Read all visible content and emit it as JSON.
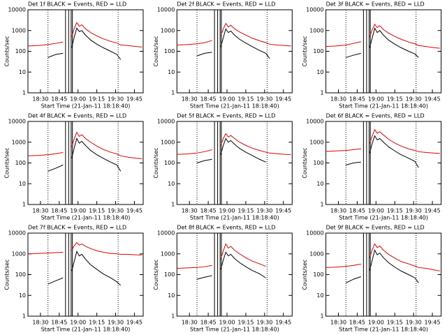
{
  "chart_data": [
    {
      "type": "line",
      "title": "Det 1f BLACK = Events, RED = LLD",
      "ylabel": "Counts/sec",
      "xlabel": "Start Time (21-Jan-11 18:18:40)",
      "log_y": true,
      "x": [
        20,
        28,
        36,
        42,
        48,
        52,
        55,
        57,
        59,
        61,
        63,
        66,
        70,
        75,
        80,
        86,
        91,
        94,
        100,
        106,
        111
      ],
      "series": [
        {
          "color": "#000000",
          "values": [
            null,
            null,
            50,
            70,
            80,
            null,
            150,
            500,
            1300,
            900,
            1000,
            600,
            350,
            220,
            150,
            100,
            70,
            40,
            null,
            null,
            null
          ]
        },
        {
          "color": "#e00000",
          "values": [
            180,
            190,
            210,
            240,
            280,
            null,
            500,
            1300,
            2400,
            1600,
            1900,
            1200,
            800,
            550,
            400,
            300,
            250,
            200,
            190,
            170,
            160
          ]
        }
      ],
      "xlim": [
        20,
        112
      ],
      "xticks": [
        {
          "value": 30,
          "label": "18:30"
        },
        {
          "value": 45,
          "label": "18:45"
        },
        {
          "value": 60,
          "label": "19:00"
        },
        {
          "value": 75,
          "label": "19:15"
        },
        {
          "value": 90,
          "label": "19:30"
        },
        {
          "value": 105,
          "label": "19:45"
        }
      ],
      "ylim": [
        1,
        10000
      ],
      "yticks": [
        1,
        10,
        100,
        1000,
        10000
      ],
      "dotted_lines": [
        36,
        92
      ],
      "solid_lines": [
        50,
        52.5,
        54.5,
        55.5
      ]
    },
    {
      "type": "line",
      "title": "Det 2f BLACK = Events, RED = LLD",
      "ylabel": "Counts/sec",
      "xlabel": "Start Time (21-Jan-11 18:18:40)",
      "log_y": true,
      "x": [
        20,
        28,
        36,
        42,
        48,
        52,
        55,
        57,
        59,
        61,
        63,
        66,
        70,
        75,
        80,
        86,
        91,
        94,
        100,
        106,
        111
      ],
      "series": [
        {
          "color": "#000000",
          "values": [
            null,
            null,
            60,
            80,
            90,
            null,
            160,
            450,
            1200,
            800,
            950,
            600,
            380,
            250,
            170,
            110,
            80,
            45,
            null,
            null,
            null
          ]
        },
        {
          "color": "#e00000",
          "values": [
            200,
            210,
            230,
            260,
            330,
            null,
            550,
            1200,
            2200,
            1500,
            1800,
            1200,
            850,
            600,
            430,
            320,
            260,
            220,
            200,
            190,
            180
          ]
        }
      ],
      "xlim": [
        20,
        112
      ],
      "xticks": [
        {
          "value": 30,
          "label": "18:30"
        },
        {
          "value": 45,
          "label": "18:45"
        },
        {
          "value": 60,
          "label": "19:00"
        },
        {
          "value": 75,
          "label": "19:15"
        },
        {
          "value": 90,
          "label": "19:30"
        },
        {
          "value": 105,
          "label": "19:45"
        }
      ],
      "ylim": [
        1,
        10000
      ],
      "yticks": [
        1,
        10,
        100,
        1000,
        10000
      ],
      "dotted_lines": [
        36,
        92
      ],
      "solid_lines": [
        50,
        52.5,
        54.5,
        55.5
      ]
    },
    {
      "type": "line",
      "title": "Det 3f BLACK = Events, RED = LLD",
      "ylabel": "Counts/sec",
      "xlabel": "Start Time (21-Jan-11 18:18:40)",
      "log_y": true,
      "x": [
        20,
        28,
        36,
        42,
        48,
        52,
        55,
        57,
        59,
        61,
        63,
        66,
        70,
        75,
        80,
        86,
        91,
        94,
        100,
        106,
        111
      ],
      "series": [
        {
          "color": "#000000",
          "values": [
            null,
            null,
            50,
            65,
            80,
            null,
            150,
            450,
            1300,
            800,
            1000,
            600,
            350,
            220,
            150,
            100,
            75,
            50,
            null,
            null,
            null
          ]
        },
        {
          "color": "#e00000",
          "values": [
            170,
            180,
            200,
            240,
            290,
            null,
            500,
            1100,
            2000,
            1400,
            1700,
            1100,
            750,
            520,
            380,
            280,
            230,
            190,
            170,
            150,
            140
          ]
        }
      ],
      "xlim": [
        20,
        112
      ],
      "xticks": [
        {
          "value": 30,
          "label": "18:30"
        },
        {
          "value": 45,
          "label": "18:45"
        },
        {
          "value": 60,
          "label": "19:00"
        },
        {
          "value": 75,
          "label": "19:15"
        },
        {
          "value": 90,
          "label": "19:30"
        },
        {
          "value": 105,
          "label": "19:45"
        }
      ],
      "ylim": [
        1,
        10000
      ],
      "yticks": [
        1,
        10,
        100,
        1000,
        10000
      ],
      "dotted_lines": [
        36,
        92
      ],
      "solid_lines": [
        50,
        52.5,
        54.5,
        55.5
      ]
    },
    {
      "type": "line",
      "title": "Det 4f BLACK = Events, RED = LLD",
      "ylabel": "Counts/sec",
      "xlabel": "Start Time (21-Jan-11 18:18:40)",
      "log_y": true,
      "x": [
        20,
        28,
        36,
        42,
        48,
        52,
        55,
        57,
        59,
        61,
        63,
        66,
        70,
        75,
        80,
        86,
        91,
        94,
        100,
        106,
        111
      ],
      "series": [
        {
          "color": "#000000",
          "values": [
            null,
            null,
            40,
            55,
            80,
            null,
            170,
            550,
            1500,
            900,
            1100,
            700,
            400,
            250,
            170,
            110,
            80,
            40,
            null,
            null,
            null
          ]
        },
        {
          "color": "#e00000",
          "values": [
            220,
            230,
            250,
            280,
            320,
            null,
            600,
            1500,
            3000,
            1900,
            2300,
            1500,
            1000,
            650,
            450,
            330,
            270,
            220,
            190,
            170,
            160
          ]
        }
      ],
      "xlim": [
        20,
        112
      ],
      "xticks": [
        {
          "value": 30,
          "label": "18:30"
        },
        {
          "value": 45,
          "label": "18:45"
        },
        {
          "value": 60,
          "label": "19:00"
        },
        {
          "value": 75,
          "label": "19:15"
        },
        {
          "value": 90,
          "label": "19:30"
        },
        {
          "value": 105,
          "label": "19:45"
        }
      ],
      "ylim": [
        1,
        10000
      ],
      "yticks": [
        1,
        10,
        100,
        1000,
        10000
      ],
      "dotted_lines": [
        36,
        92
      ],
      "solid_lines": [
        50,
        52.5,
        54.5,
        55.5
      ]
    },
    {
      "type": "line",
      "title": "Det 5f BLACK = Events, RED = LLD",
      "ylabel": "Counts/sec",
      "xlabel": "Start Time (21-Jan-11 18:18:40)",
      "log_y": true,
      "x": [
        20,
        28,
        36,
        42,
        48,
        52,
        55,
        57,
        59,
        61,
        63,
        66,
        70,
        75,
        80,
        86,
        91,
        94,
        100,
        106,
        111
      ],
      "series": [
        {
          "color": "#000000",
          "values": [
            null,
            null,
            100,
            130,
            150,
            null,
            250,
            700,
            1500,
            1000,
            1200,
            800,
            500,
            330,
            230,
            150,
            110,
            null,
            null,
            null,
            null
          ]
        },
        {
          "color": "#e00000",
          "values": [
            260,
            270,
            300,
            350,
            430,
            null,
            700,
            1500,
            2600,
            1800,
            2100,
            1500,
            1000,
            700,
            520,
            400,
            330,
            300,
            280,
            260,
            250
          ]
        }
      ],
      "xlim": [
        20,
        112
      ],
      "xticks": [
        {
          "value": 30,
          "label": "18:30"
        },
        {
          "value": 45,
          "label": "18:45"
        },
        {
          "value": 60,
          "label": "19:00"
        },
        {
          "value": 75,
          "label": "19:15"
        },
        {
          "value": 90,
          "label": "19:30"
        },
        {
          "value": 105,
          "label": "19:45"
        }
      ],
      "ylim": [
        1,
        10000
      ],
      "yticks": [
        1,
        10,
        100,
        1000,
        10000
      ],
      "dotted_lines": [
        36,
        92
      ],
      "solid_lines": [
        50,
        52.5,
        54.5,
        55.5
      ]
    },
    {
      "type": "line",
      "title": "Det 6f BLACK = Events, RED = LLD",
      "ylabel": "Counts/sec",
      "xlabel": "Start Time (21-Jan-11 18:18:40)",
      "log_y": true,
      "x": [
        20,
        28,
        36,
        42,
        48,
        52,
        55,
        57,
        59,
        61,
        63,
        66,
        70,
        75,
        80,
        86,
        91,
        94,
        100,
        106,
        111
      ],
      "series": [
        {
          "color": "#000000",
          "values": [
            null,
            null,
            80,
            100,
            110,
            null,
            300,
            900,
            2000,
            1300,
            1500,
            1000,
            600,
            380,
            250,
            170,
            120,
            60,
            null,
            null,
            null
          ]
        },
        {
          "color": "#e00000",
          "values": [
            360,
            380,
            400,
            440,
            480,
            null,
            900,
            2000,
            4000,
            2700,
            3200,
            2200,
            1400,
            900,
            650,
            480,
            400,
            350,
            320,
            300,
            290
          ]
        }
      ],
      "xlim": [
        20,
        112
      ],
      "xticks": [
        {
          "value": 30,
          "label": "18:30"
        },
        {
          "value": 45,
          "label": "18:45"
        },
        {
          "value": 60,
          "label": "19:00"
        },
        {
          "value": 75,
          "label": "19:15"
        },
        {
          "value": 90,
          "label": "19:30"
        },
        {
          "value": 105,
          "label": "19:45"
        }
      ],
      "ylim": [
        1,
        10000
      ],
      "yticks": [
        1,
        10,
        100,
        1000,
        10000
      ],
      "dotted_lines": [
        36,
        92
      ],
      "solid_lines": [
        50,
        52.5,
        54.5,
        55.5
      ]
    },
    {
      "type": "line",
      "title": "Det 7f BLACK = Events, RED = LLD",
      "ylabel": "Counts/sec",
      "xlabel": "Start Time (21-Jan-11 18:18:40)",
      "log_y": true,
      "x": [
        20,
        28,
        36,
        42,
        48,
        52,
        55,
        57,
        59,
        61,
        63,
        66,
        70,
        75,
        80,
        86,
        91,
        94,
        100,
        106,
        111
      ],
      "series": [
        {
          "color": "#000000",
          "values": [
            null,
            null,
            35,
            50,
            70,
            null,
            150,
            450,
            1300,
            800,
            950,
            550,
            300,
            180,
            110,
            70,
            45,
            30,
            null,
            null,
            null
          ]
        },
        {
          "color": "#e00000",
          "values": [
            1000,
            1050,
            1100,
            1150,
            1200,
            null,
            1500,
            2500,
            3500,
            2600,
            3000,
            2300,
            1800,
            1400,
            1200,
            1050,
            1000,
            950,
            950,
            900,
            880
          ]
        }
      ],
      "xlim": [
        20,
        112
      ],
      "xticks": [
        {
          "value": 30,
          "label": "18:30"
        },
        {
          "value": 45,
          "label": "18:45"
        },
        {
          "value": 60,
          "label": "19:00"
        },
        {
          "value": 75,
          "label": "19:15"
        },
        {
          "value": 90,
          "label": "19:30"
        },
        {
          "value": 105,
          "label": "19:45"
        }
      ],
      "ylim": [
        1,
        10000
      ],
      "yticks": [
        1,
        10,
        100,
        1000,
        10000
      ],
      "dotted_lines": [
        36,
        92
      ],
      "solid_lines": [
        50,
        52.5,
        54.5,
        55.5
      ]
    },
    {
      "type": "line",
      "title": "Det 8f BLACK = Events, RED = LLD",
      "ylabel": "Counts/sec",
      "xlabel": "Start Time (21-Jan-11 18:18:40)",
      "log_y": true,
      "x": [
        20,
        28,
        36,
        42,
        48,
        52,
        55,
        57,
        59,
        61,
        63,
        66,
        70,
        75,
        80,
        86,
        91,
        94,
        100,
        106,
        111
      ],
      "series": [
        {
          "color": "#000000",
          "values": [
            null,
            null,
            60,
            75,
            90,
            null,
            180,
            500,
            1200,
            800,
            950,
            600,
            380,
            240,
            160,
            110,
            70,
            null,
            null,
            null,
            null
          ]
        },
        {
          "color": "#e00000",
          "values": [
            200,
            210,
            220,
            240,
            280,
            null,
            550,
            1400,
            3000,
            1900,
            2300,
            1500,
            1000,
            650,
            450,
            330,
            250,
            null,
            null,
            null,
            null
          ]
        }
      ],
      "xlim": [
        20,
        112
      ],
      "xticks": [
        {
          "value": 30,
          "label": "18:30"
        },
        {
          "value": 45,
          "label": "18:45"
        },
        {
          "value": 60,
          "label": "19:00"
        },
        {
          "value": 75,
          "label": "19:15"
        },
        {
          "value": 90,
          "label": "19:30"
        },
        {
          "value": 105,
          "label": "19:45"
        }
      ],
      "ylim": [
        1,
        10000
      ],
      "yticks": [
        1,
        10,
        100,
        1000,
        10000
      ],
      "dotted_lines": [
        36,
        92
      ],
      "solid_lines": [
        50,
        52.5,
        54.5,
        55.5
      ]
    },
    {
      "type": "line",
      "title": "Det 9f BLACK = Events, RED = LLD",
      "ylabel": "Counts/sec",
      "xlabel": "Start Time (21-Jan-11 18:18:40)",
      "log_y": true,
      "x": [
        20,
        28,
        36,
        42,
        48,
        52,
        55,
        57,
        59,
        61,
        63,
        66,
        70,
        75,
        80,
        86,
        91,
        94,
        100,
        106,
        111
      ],
      "series": [
        {
          "color": "#000000",
          "values": [
            null,
            null,
            40,
            60,
            80,
            null,
            160,
            500,
            1500,
            900,
            1100,
            650,
            380,
            230,
            150,
            100,
            70,
            40,
            null,
            null,
            null
          ]
        },
        {
          "color": "#e00000",
          "values": [
            220,
            230,
            250,
            280,
            320,
            null,
            650,
            1600,
            3000,
            2000,
            2400,
            1500,
            950,
            620,
            430,
            330,
            260,
            220,
            200,
            170,
            150
          ]
        }
      ],
      "xlim": [
        20,
        112
      ],
      "xticks": [
        {
          "value": 30,
          "label": "18:30"
        },
        {
          "value": 45,
          "label": "18:45"
        },
        {
          "value": 60,
          "label": "19:00"
        },
        {
          "value": 75,
          "label": "19:15"
        },
        {
          "value": 90,
          "label": "19:30"
        },
        {
          "value": 105,
          "label": "19:45"
        }
      ],
      "ylim": [
        1,
        10000
      ],
      "yticks": [
        1,
        10,
        100,
        1000,
        10000
      ],
      "dotted_lines": [
        36,
        92
      ],
      "solid_lines": [
        50,
        52.5,
        54.5,
        55.5
      ]
    }
  ]
}
